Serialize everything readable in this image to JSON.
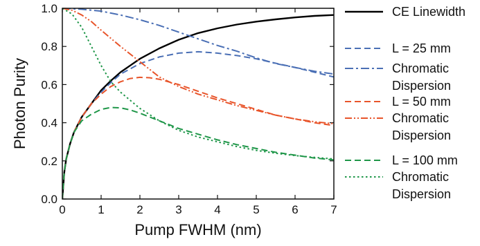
{
  "chart_data": {
    "type": "line",
    "xlabel": "Pump FWHM (nm)",
    "ylabel": "Photon Purity",
    "xlim": [
      0,
      7
    ],
    "ylim": [
      0,
      1.0
    ],
    "x_ticks": [
      "0",
      "1",
      "2",
      "3",
      "4",
      "5",
      "6",
      "7"
    ],
    "y_ticks": [
      "0.0",
      "0.2",
      "0.4",
      "0.6",
      "0.8",
      "1.0"
    ],
    "grid": false,
    "legend_position": "right",
    "series": [
      {
        "name": "CE Linewidth",
        "color": "#000000",
        "dash": "solid",
        "points": [
          [
            0,
            0
          ],
          [
            0.05,
            0.14
          ],
          [
            0.1,
            0.21
          ],
          [
            0.2,
            0.29
          ],
          [
            0.3,
            0.35
          ],
          [
            0.5,
            0.43
          ],
          [
            0.75,
            0.5
          ],
          [
            1.0,
            0.57
          ],
          [
            1.25,
            0.62
          ],
          [
            1.5,
            0.665
          ],
          [
            1.75,
            0.7
          ],
          [
            2.0,
            0.735
          ],
          [
            2.5,
            0.79
          ],
          [
            3.0,
            0.835
          ],
          [
            3.5,
            0.87
          ],
          [
            4.0,
            0.895
          ],
          [
            4.5,
            0.915
          ],
          [
            5.0,
            0.93
          ],
          [
            5.5,
            0.942
          ],
          [
            6.0,
            0.952
          ],
          [
            6.5,
            0.96
          ],
          [
            7.0,
            0.965
          ]
        ]
      },
      {
        "name": "L = 25 mm",
        "color": "#4a6fb5",
        "dash": "dash",
        "points": [
          [
            0,
            0
          ],
          [
            0.05,
            0.14
          ],
          [
            0.1,
            0.21
          ],
          [
            0.2,
            0.29
          ],
          [
            0.3,
            0.35
          ],
          [
            0.5,
            0.43
          ],
          [
            0.75,
            0.5
          ],
          [
            1.0,
            0.56
          ],
          [
            1.25,
            0.61
          ],
          [
            1.5,
            0.655
          ],
          [
            2.0,
            0.71
          ],
          [
            2.5,
            0.745
          ],
          [
            3.0,
            0.765
          ],
          [
            3.5,
            0.772
          ],
          [
            4.0,
            0.765
          ],
          [
            4.5,
            0.752
          ],
          [
            5.0,
            0.735
          ],
          [
            5.5,
            0.712
          ],
          [
            6.0,
            0.69
          ],
          [
            6.5,
            0.665
          ],
          [
            7.0,
            0.64
          ]
        ]
      },
      {
        "name": "Chromatic Dispersion",
        "color": "#4a6fb5",
        "dash": "dashdot",
        "points": [
          [
            0,
            1.0
          ],
          [
            0.5,
            0.995
          ],
          [
            1.0,
            0.985
          ],
          [
            1.5,
            0.965
          ],
          [
            2.0,
            0.94
          ],
          [
            2.5,
            0.91
          ],
          [
            3.0,
            0.875
          ],
          [
            3.5,
            0.84
          ],
          [
            4.0,
            0.805
          ],
          [
            4.5,
            0.775
          ],
          [
            5.0,
            0.74
          ],
          [
            5.5,
            0.71
          ],
          [
            6.0,
            0.69
          ],
          [
            6.5,
            0.67
          ],
          [
            7.0,
            0.655
          ]
        ]
      },
      {
        "name": "L = 50 mm",
        "color": "#e8542a",
        "dash": "dash",
        "points": [
          [
            0,
            0
          ],
          [
            0.05,
            0.14
          ],
          [
            0.1,
            0.21
          ],
          [
            0.2,
            0.29
          ],
          [
            0.3,
            0.35
          ],
          [
            0.5,
            0.43
          ],
          [
            0.75,
            0.5
          ],
          [
            1.0,
            0.55
          ],
          [
            1.25,
            0.59
          ],
          [
            1.5,
            0.615
          ],
          [
            1.75,
            0.632
          ],
          [
            2.0,
            0.638
          ],
          [
            2.25,
            0.636
          ],
          [
            2.5,
            0.628
          ],
          [
            3.0,
            0.6
          ],
          [
            3.5,
            0.565
          ],
          [
            4.0,
            0.53
          ],
          [
            4.5,
            0.5
          ],
          [
            5.0,
            0.47
          ],
          [
            5.5,
            0.44
          ],
          [
            6.0,
            0.42
          ],
          [
            6.5,
            0.4
          ],
          [
            7.0,
            0.385
          ]
        ]
      },
      {
        "name": "Chromatic Dispersion",
        "color": "#e8542a",
        "dash": "dashdotdot",
        "points": [
          [
            0,
            1.0
          ],
          [
            0.25,
            0.99
          ],
          [
            0.5,
            0.965
          ],
          [
            0.75,
            0.93
          ],
          [
            1.0,
            0.885
          ],
          [
            1.5,
            0.8
          ],
          [
            2.0,
            0.72
          ],
          [
            2.5,
            0.64
          ],
          [
            3.0,
            0.59
          ],
          [
            3.5,
            0.55
          ],
          [
            4.0,
            0.52
          ],
          [
            4.5,
            0.49
          ],
          [
            5.0,
            0.465
          ],
          [
            5.5,
            0.44
          ],
          [
            6.0,
            0.42
          ],
          [
            6.5,
            0.405
          ],
          [
            7.0,
            0.395
          ]
        ]
      },
      {
        "name": "L = 100 mm",
        "color": "#1e9648",
        "dash": "dash",
        "points": [
          [
            0,
            0
          ],
          [
            0.05,
            0.14
          ],
          [
            0.1,
            0.21
          ],
          [
            0.2,
            0.29
          ],
          [
            0.3,
            0.35
          ],
          [
            0.5,
            0.41
          ],
          [
            0.75,
            0.445
          ],
          [
            1.0,
            0.47
          ],
          [
            1.25,
            0.48
          ],
          [
            1.5,
            0.478
          ],
          [
            1.75,
            0.467
          ],
          [
            2.0,
            0.45
          ],
          [
            2.5,
            0.41
          ],
          [
            3.0,
            0.37
          ],
          [
            3.5,
            0.34
          ],
          [
            4.0,
            0.31
          ],
          [
            4.5,
            0.285
          ],
          [
            5.0,
            0.265
          ],
          [
            5.5,
            0.245
          ],
          [
            6.0,
            0.23
          ],
          [
            6.5,
            0.215
          ],
          [
            7.0,
            0.205
          ]
        ]
      },
      {
        "name": "Chromatic Dispersion",
        "color": "#1e9648",
        "dash": "dot",
        "points": [
          [
            0,
            1.0
          ],
          [
            0.25,
            0.97
          ],
          [
            0.5,
            0.9
          ],
          [
            0.75,
            0.8
          ],
          [
            1.0,
            0.7
          ],
          [
            1.25,
            0.615
          ],
          [
            1.5,
            0.56
          ],
          [
            2.0,
            0.475
          ],
          [
            2.5,
            0.41
          ],
          [
            3.0,
            0.36
          ],
          [
            3.5,
            0.325
          ],
          [
            4.0,
            0.3
          ],
          [
            4.5,
            0.275
          ],
          [
            5.0,
            0.255
          ],
          [
            5.5,
            0.24
          ],
          [
            6.0,
            0.228
          ],
          [
            6.5,
            0.218
          ],
          [
            7.0,
            0.21
          ]
        ]
      }
    ]
  },
  "legend": [
    {
      "label": "CE Linewidth",
      "color": "#000000",
      "dash": "solid"
    },
    {
      "label": "L = 25 mm",
      "color": "#4a6fb5",
      "dash": "dash"
    },
    {
      "label": "Chromatic",
      "label2": "Dispersion",
      "color": "#4a6fb5",
      "dash": "dashdot"
    },
    {
      "label": "L = 50 mm",
      "color": "#e8542a",
      "dash": "dash"
    },
    {
      "label": "Chromatic",
      "label2": "Dispersion",
      "color": "#e8542a",
      "dash": "dashdotdot"
    },
    {
      "label": "L = 100 mm",
      "color": "#1e9648",
      "dash": "dash"
    },
    {
      "label": "Chromatic",
      "label2": "Dispersion",
      "color": "#1e9648",
      "dash": "dot"
    }
  ]
}
